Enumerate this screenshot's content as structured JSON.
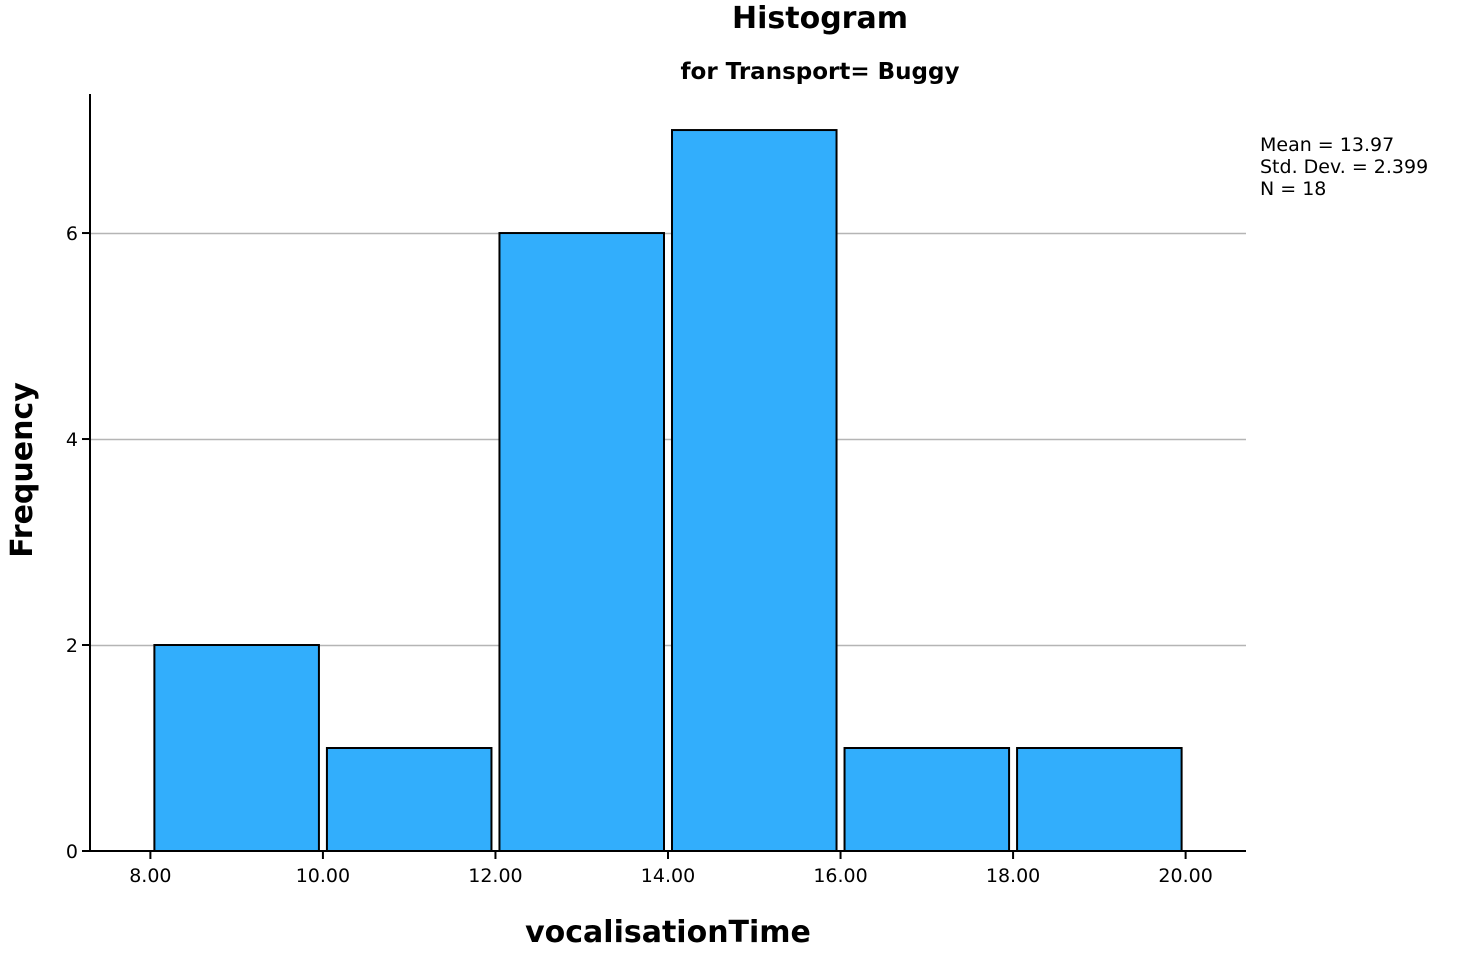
{
  "chart_data": {
    "type": "bar",
    "title": "Histogram",
    "subtitle": "for Transport= Buggy",
    "xlabel": "vocalisationTime",
    "ylabel": "Frequency",
    "bins": [
      {
        "start": 8.0,
        "end": 10.0,
        "count": 2
      },
      {
        "start": 10.0,
        "end": 12.0,
        "count": 1
      },
      {
        "start": 12.0,
        "end": 14.0,
        "count": 6
      },
      {
        "start": 14.0,
        "end": 16.0,
        "count": 7
      },
      {
        "start": 16.0,
        "end": 18.0,
        "count": 1
      },
      {
        "start": 18.0,
        "end": 20.0,
        "count": 1
      }
    ],
    "x_ticks": [
      "8.00",
      "10.00",
      "12.00",
      "14.00",
      "16.00",
      "18.00",
      "20.00"
    ],
    "x_tick_values": [
      8,
      10,
      12,
      14,
      16,
      18,
      20
    ],
    "y_ticks": [
      "0",
      "2",
      "4",
      "6"
    ],
    "y_tick_values": [
      0,
      2,
      4,
      6
    ],
    "xlim": [
      7.3,
      20.7
    ],
    "ylim": [
      0,
      7.35
    ],
    "grid": "horizontal",
    "legend": "none",
    "statistics": [
      "Mean = 13.97",
      "Std. Dev. = 2.399",
      "N = 18"
    ],
    "colors": {
      "bar_fill": "#32aefc",
      "bar_stroke": "#000000",
      "grid": "#b5b5b5",
      "axis": "#000000"
    }
  }
}
